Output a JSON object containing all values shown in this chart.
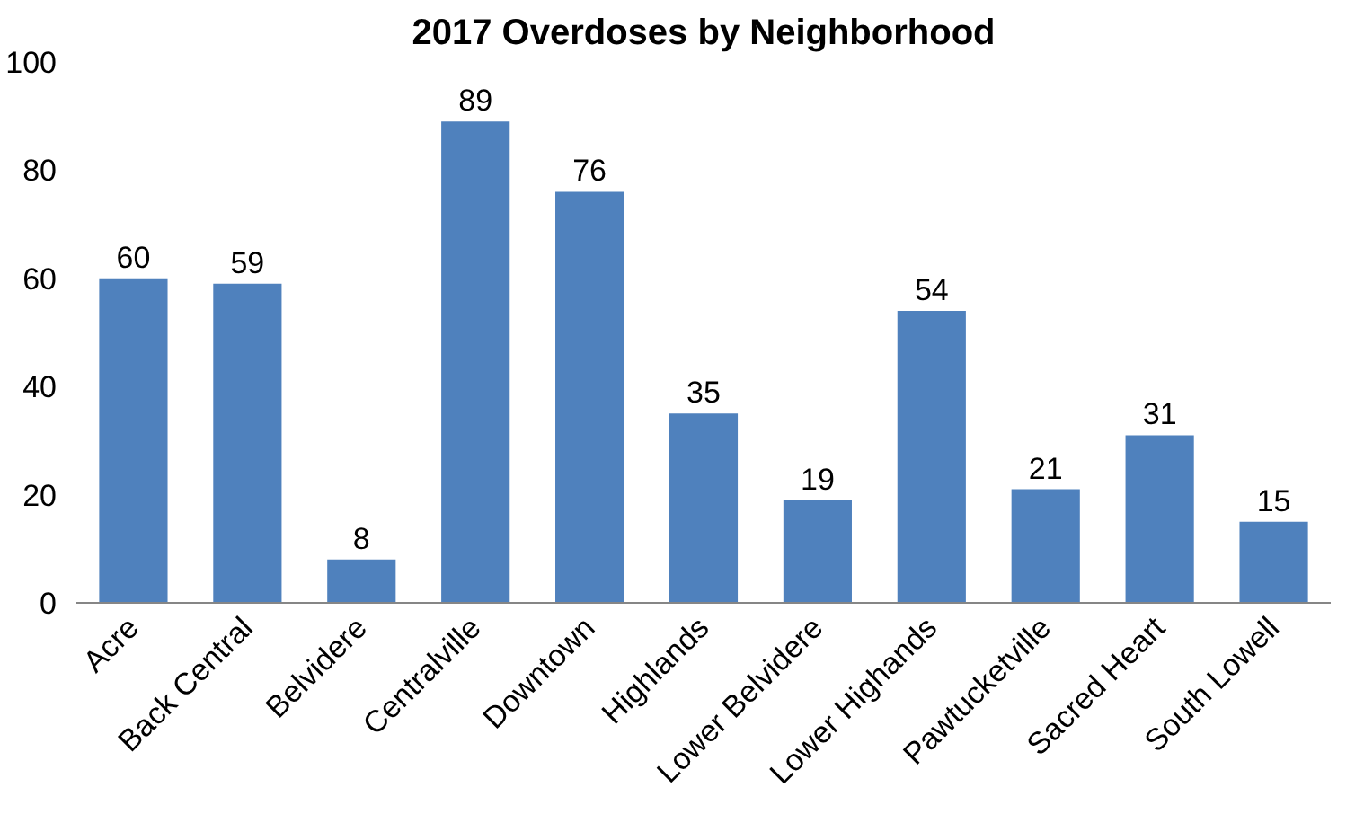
{
  "chart_data": {
    "type": "bar",
    "title": "2017 Overdoses by Neighborhood",
    "categories": [
      "Acre",
      "Back Central",
      "Belvidere",
      "Centralville",
      "Downtown",
      "Highlands",
      "Lower Belvidere",
      "Lower Highands",
      "Pawtucketville",
      "Sacred Heart",
      "South Lowell"
    ],
    "values": [
      60,
      59,
      8,
      89,
      76,
      35,
      19,
      54,
      21,
      31,
      15
    ],
    "color": "#4f81bd",
    "ylim": [
      0,
      100
    ],
    "yticks": [
      0,
      20,
      40,
      60,
      80,
      100
    ],
    "data_labels": true,
    "grid": false
  }
}
